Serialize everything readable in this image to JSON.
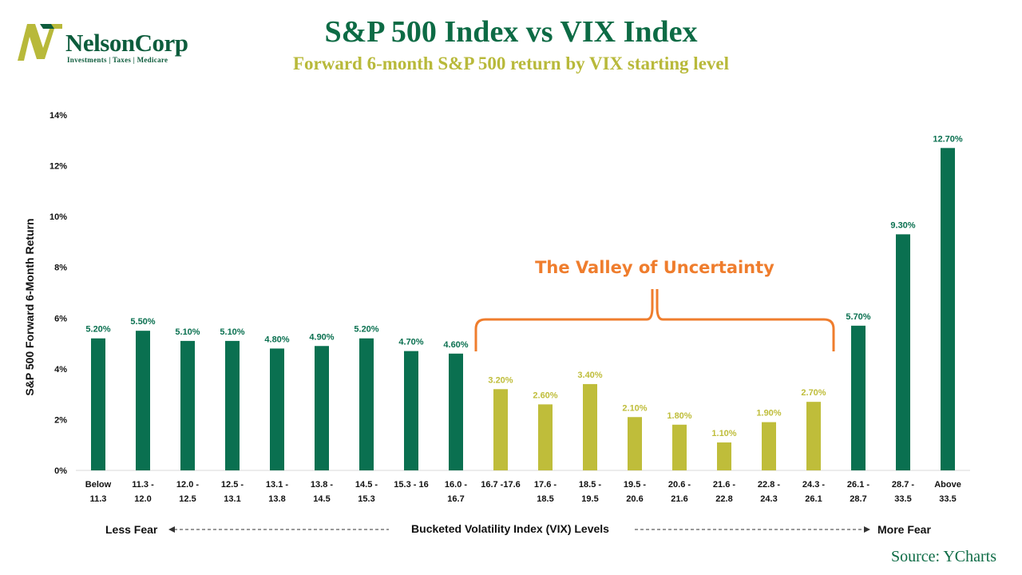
{
  "header": {
    "title": "S&P 500 Index vs VIX Index",
    "subtitle": "Forward 6-month S&P 500 return by VIX starting level"
  },
  "logo": {
    "name": "NelsonCorp",
    "tagline": "Investments | Taxes | Medicare"
  },
  "source": "Source: YCharts",
  "annotation": {
    "text": "The Valley of Uncertainty",
    "color": "#ef7d2d"
  },
  "footer": {
    "left": "Less Fear",
    "center": "Bucketed Volatility Index (VIX) Levels",
    "right": "More Fear"
  },
  "colors": {
    "green": "#0a7050",
    "olive": "#bfbd3a",
    "title_green": "#0d6b45"
  },
  "chart_data": {
    "type": "bar",
    "ylabel": "S&P 500 Forward 6-Month Return",
    "xlabel": "Bucketed Volatility Index (VIX) Levels",
    "ylim": [
      0,
      14
    ],
    "yticks": [
      "0%",
      "2%",
      "4%",
      "6%",
      "8%",
      "10%",
      "12%",
      "14%"
    ],
    "grid": false,
    "categories": [
      [
        "Below",
        "11.3"
      ],
      [
        "11.3 -",
        "12.0"
      ],
      [
        "12.0 -",
        "12.5"
      ],
      [
        "12.5 -",
        "13.1"
      ],
      [
        "13.1 -",
        "13.8"
      ],
      [
        "13.8 -",
        "14.5"
      ],
      [
        "14.5 -",
        "15.3"
      ],
      [
        "15.3 - 16"
      ],
      [
        "16.0 -",
        "16.7"
      ],
      [
        "16.7 -17.6"
      ],
      [
        "17.6 -",
        "18.5"
      ],
      [
        "18.5 -",
        "19.5"
      ],
      [
        "19.5 -",
        "20.6"
      ],
      [
        "20.6 -",
        "21.6"
      ],
      [
        "21.6 -",
        "22.8"
      ],
      [
        "22.8 -",
        "24.3"
      ],
      [
        "24.3 -",
        "26.1"
      ],
      [
        "26.1 -",
        "28.7"
      ],
      [
        "28.7 -",
        "33.5"
      ],
      [
        "Above",
        "33.5"
      ]
    ],
    "values": [
      5.2,
      5.5,
      5.1,
      5.1,
      4.8,
      4.9,
      5.2,
      4.7,
      4.6,
      3.2,
      2.6,
      3.4,
      2.1,
      1.8,
      1.1,
      1.9,
      2.7,
      5.7,
      9.3,
      12.7
    ],
    "value_labels": [
      "5.20%",
      "5.50%",
      "5.10%",
      "5.10%",
      "4.80%",
      "4.90%",
      "5.20%",
      "4.70%",
      "4.60%",
      "3.20%",
      "2.60%",
      "3.40%",
      "2.10%",
      "1.80%",
      "1.10%",
      "1.90%",
      "2.70%",
      "5.70%",
      "9.30%",
      "12.70%"
    ],
    "bar_colors": [
      "green",
      "green",
      "green",
      "green",
      "green",
      "green",
      "green",
      "green",
      "green",
      "olive",
      "olive",
      "olive",
      "olive",
      "olive",
      "olive",
      "olive",
      "olive",
      "green",
      "green",
      "green"
    ]
  }
}
